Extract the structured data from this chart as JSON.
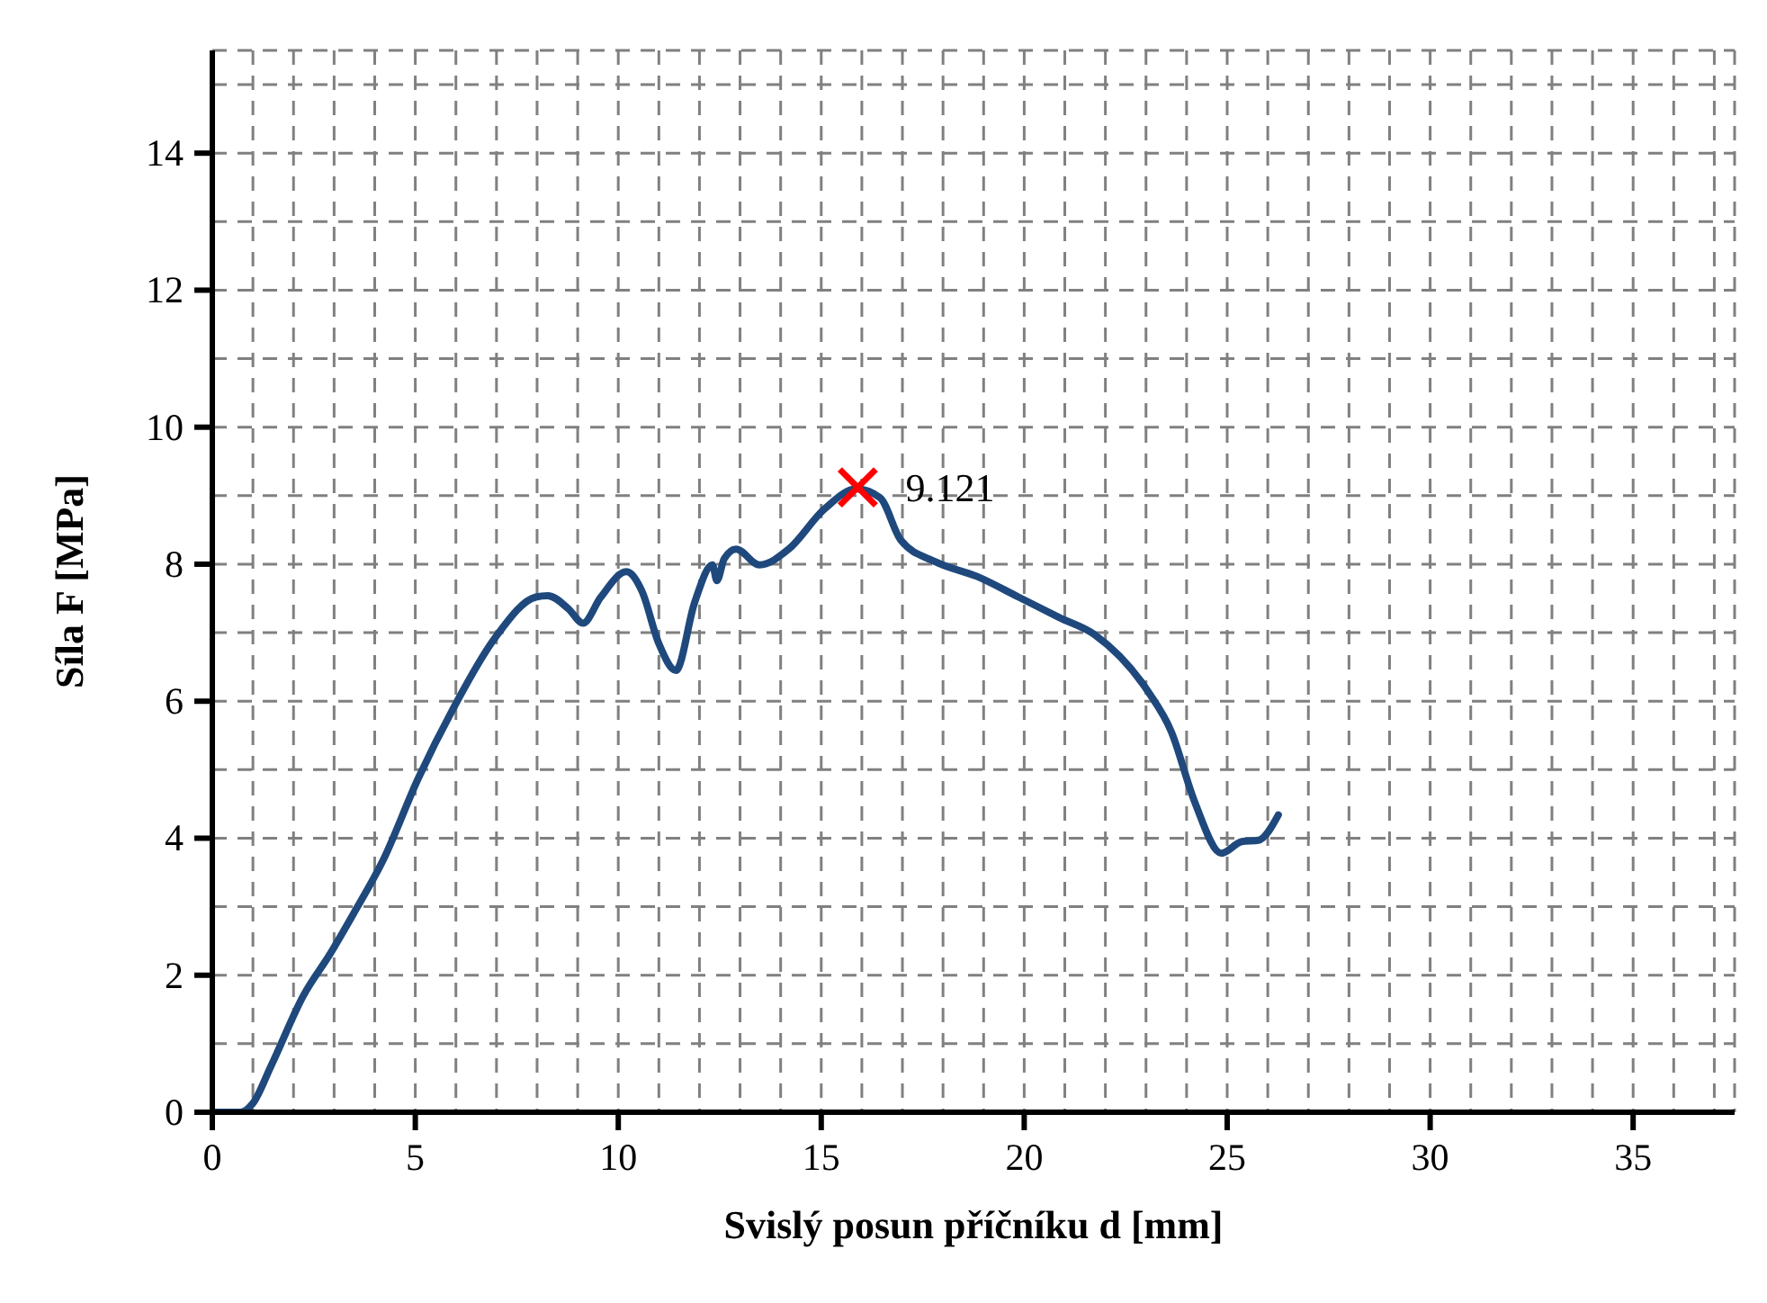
{
  "chart_data": {
    "type": "line",
    "xlabel": "Svislý posun příčníku d [mm]",
    "ylabel": "Síla F [MPa]",
    "xlim": [
      0,
      37.5
    ],
    "ylim": [
      0,
      15.5
    ],
    "xticks": [
      0,
      {
        "value": 1,
        "label": null
      },
      {
        "value": 2,
        "label": null
      },
      {
        "value": 3,
        "label": null
      },
      {
        "value": 4,
        "label": null
      },
      5,
      {
        "value": 6,
        "label": null
      },
      {
        "value": 7,
        "label": null
      },
      {
        "value": 8,
        "label": null
      },
      {
        "value": 9,
        "label": null
      },
      10,
      {
        "value": 11,
        "label": null
      },
      {
        "value": 12,
        "label": null
      },
      {
        "value": 13,
        "label": null
      },
      {
        "value": 14,
        "label": null
      },
      15,
      {
        "value": 16,
        "label": null
      },
      {
        "value": 17,
        "label": null
      },
      {
        "value": 18,
        "label": null
      },
      {
        "value": 19,
        "label": null
      },
      20,
      {
        "value": 21,
        "label": null
      },
      {
        "value": 22,
        "label": null
      },
      {
        "value": 23,
        "label": null
      },
      {
        "value": 24,
        "label": null
      },
      25,
      {
        "value": 26,
        "label": null
      },
      {
        "value": 27,
        "label": null
      },
      {
        "value": 28,
        "label": null
      },
      {
        "value": 29,
        "label": null
      },
      30,
      {
        "value": 31,
        "label": null
      },
      {
        "value": 32,
        "label": null
      },
      {
        "value": 33,
        "label": null
      },
      {
        "value": 34,
        "label": null
      },
      35,
      {
        "value": 36,
        "label": null
      },
      {
        "value": 37,
        "label": null
      }
    ],
    "yticks": [
      0,
      {
        "value": 1,
        "label": null
      },
      2,
      {
        "value": 3,
        "label": null
      },
      4,
      {
        "value": 5,
        "label": null
      },
      6,
      {
        "value": 7,
        "label": null
      },
      8,
      {
        "value": 9,
        "label": null
      },
      10,
      {
        "value": 11,
        "label": null
      },
      12,
      {
        "value": 13,
        "label": null
      },
      14,
      {
        "value": 15,
        "label": null
      }
    ],
    "grid": true,
    "series": [
      {
        "color": "#1f497d",
        "marker": "none",
        "x": [
          0.07,
          0.7,
          1.0,
          1.45,
          2.25,
          2.9,
          3.48,
          4.2,
          5.07,
          5.94,
          6.96,
          7.97,
          8.26,
          8.77,
          9.13,
          9.57,
          10.2,
          10.58,
          11.0,
          11.42,
          11.88,
          12.32,
          12.43,
          12.61,
          12.9,
          13.48,
          14.2,
          15.07,
          15.87,
          16.45,
          16.96,
          17.83,
          18.84,
          19.86,
          20.87,
          21.74,
          23.04,
          23.62,
          24.2,
          24.86,
          25.36,
          25.77,
          26.26
        ],
        "values": [
          0,
          0,
          0.13,
          0.68,
          1.71,
          2.31,
          2.9,
          3.67,
          4.87,
          5.9,
          6.92,
          7.52,
          7.54,
          7.35,
          7.14,
          7.52,
          7.89,
          7.61,
          6.84,
          6.45,
          7.44,
          7.99,
          7.76,
          8.08,
          8.22,
          7.99,
          8.22,
          8.8,
          9.1,
          8.97,
          8.35,
          8.03,
          7.82,
          7.52,
          7.22,
          6.97,
          6.15,
          5.56,
          4.53,
          3.78,
          3.95,
          3.97,
          4.34
        ]
      },
      {
        "type": "scatter",
        "color": "#ff0000",
        "marker": "cross",
        "x": [
          15.9
        ],
        "values": [
          9.121
        ],
        "value_labels": [
          "9.121"
        ]
      }
    ]
  }
}
